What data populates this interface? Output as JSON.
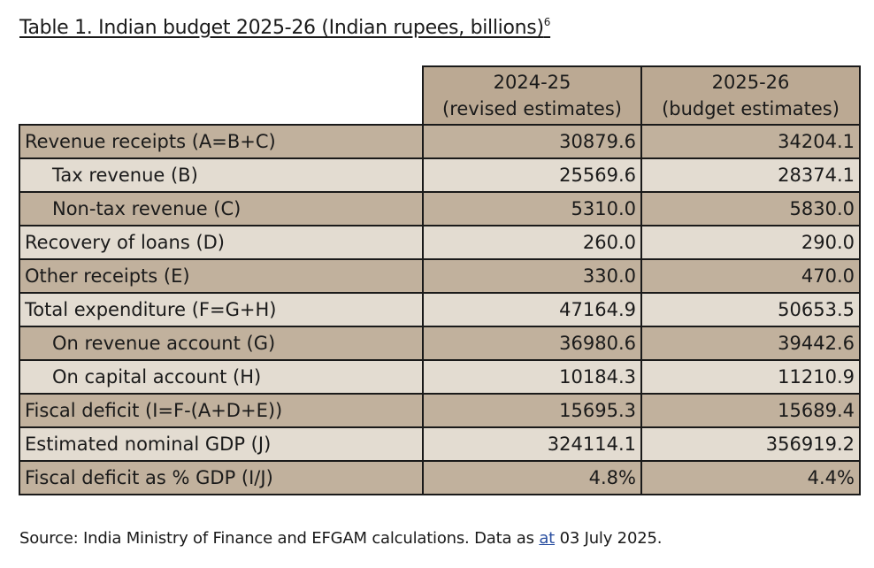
{
  "title": "Table 1. Indian budget 2025-26 (Indian rupees, billions)",
  "title_footnote": "6",
  "columns": [
    {
      "line1": "2024-25",
      "line2": "(revised estimates)"
    },
    {
      "line1": "2025-26",
      "line2": "(budget estimates)"
    }
  ],
  "rows": [
    {
      "label": "Revenue receipts (A=B+C)",
      "v1": "30879.6",
      "v2": "34204.1"
    },
    {
      "label": "Tax revenue (B)",
      "v1": "25569.6",
      "v2": "28374.1"
    },
    {
      "label": "Non-tax revenue (C)",
      "v1": "5310.0",
      "v2": "5830.0"
    },
    {
      "label": "Recovery of loans (D)",
      "v1": "260.0",
      "v2": "290.0"
    },
    {
      "label": "Other receipts (E)",
      "v1": "330.0",
      "v2": "470.0"
    },
    {
      "label": "Total expenditure (F=G+H)",
      "v1": "47164.9",
      "v2": "50653.5"
    },
    {
      "label": "On revenue account (G)",
      "v1": "36980.6",
      "v2": "39442.6"
    },
    {
      "label": "On capital account (H)",
      "v1": "10184.3",
      "v2": "11210.9"
    },
    {
      "label": "Fiscal deficit (I=F-(A+D+E))",
      "v1": "15695.3",
      "v2": "15689.4"
    },
    {
      "label": "Estimated nominal GDP (J)",
      "v1": "324114.1",
      "v2": "356919.2"
    },
    {
      "label": "Fiscal deficit as % GDP (I/J)",
      "v1": "4.8%",
      "v2": "4.4%"
    }
  ],
  "source": {
    "before": "Source: India Ministry of Finance and EFGAM calculations. Data as ",
    "link": "at",
    "after": " 03 July 2025."
  },
  "colors": {
    "header_bg": "#bba993",
    "row_dark": "#c1b19d",
    "row_light": "#e3dcd1"
  }
}
